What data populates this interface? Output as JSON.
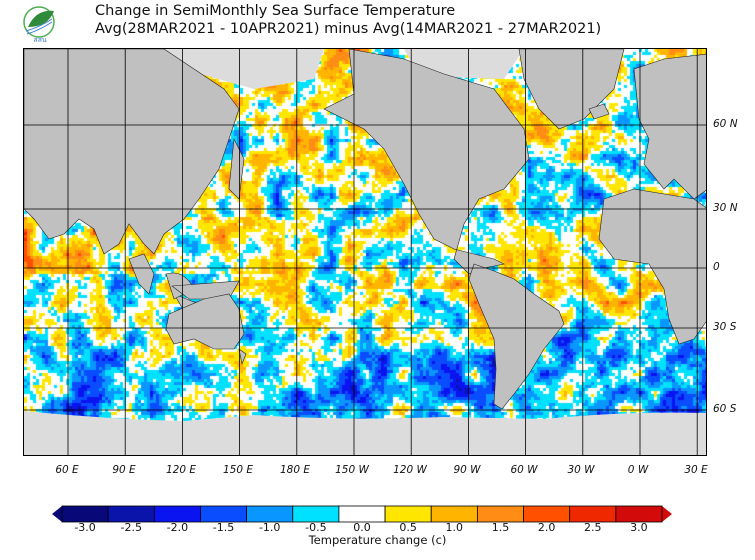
{
  "header": {
    "title_line1": "Change in SemiMonthly Sea Surface Temperature",
    "title_line2": "Avg(28MAR2021 - 10APR2021) minus Avg(14MAR2021 - 27MAR2021)",
    "logo_text": "สสน"
  },
  "map": {
    "longitude_labels": [
      "60 E",
      "90 E",
      "120 E",
      "150 E",
      "180 E",
      "150 W",
      "120 W",
      "90 W",
      "60 W",
      "30 W",
      "0 W",
      "30 E"
    ],
    "latitude_labels": [
      "60 N",
      "30 N",
      "0",
      "30 S",
      "60 S"
    ],
    "land_color": "#c0c0c0",
    "ice_color": "#dcdcdc"
  },
  "colorbar": {
    "ticks": [
      "-3.0",
      "-2.5",
      "-2.0",
      "-1.5",
      "-1.0",
      "-0.5",
      "0.0",
      "0.5",
      "1.0",
      "1.5",
      "2.0",
      "2.5",
      "3.0"
    ],
    "label": "Temperature change  (c)",
    "colors": [
      "#080878",
      "#0a14aa",
      "#0a14f0",
      "#0a4cff",
      "#0a96ff",
      "#00e1ff",
      "#ffffff",
      "#ffe600",
      "#ffb400",
      "#ff8c14",
      "#ff5000",
      "#f02800",
      "#d20a0a"
    ]
  }
}
